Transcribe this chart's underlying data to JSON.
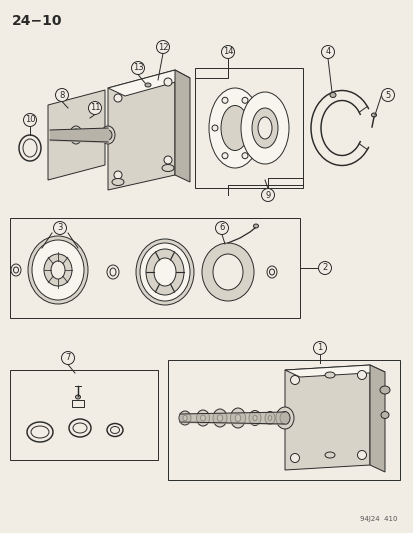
{
  "title": "24−10",
  "footer": "94J24  410",
  "bg_color": "#f2ede4",
  "line_color": "#2a2a2a",
  "fill_light": "#d8d3c8",
  "fill_mid": "#b8b3a8",
  "white": "#f8f5ee"
}
